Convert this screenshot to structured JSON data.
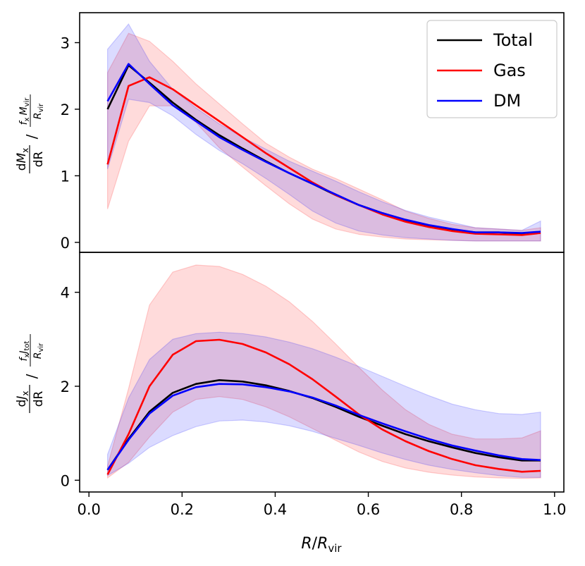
{
  "chart_data": [
    {
      "type": "line",
      "panel": "top",
      "title": "",
      "ylabel": {
        "num_d": "d",
        "num_sym": "M",
        "num_sub": "x",
        "den": "dR",
        "slash": "/",
        "f_num": "f",
        "f_sub": "x",
        "f_num2": "M",
        "f_num2_sub": "vir",
        "f_den": "R",
        "f_den_sub": "vir"
      },
      "xlim": [
        -0.02,
        1.02
      ],
      "ylim": [
        -0.15,
        3.45
      ],
      "yticks": [
        0,
        1,
        2,
        3
      ],
      "ytick_labels": [
        "0",
        "1",
        "2",
        "3"
      ],
      "x": [
        0.04,
        0.085,
        0.13,
        0.18,
        0.23,
        0.28,
        0.33,
        0.38,
        0.43,
        0.48,
        0.53,
        0.58,
        0.63,
        0.68,
        0.73,
        0.78,
        0.83,
        0.88,
        0.93,
        0.97
      ],
      "series": [
        {
          "name": "Total",
          "color": "#000000",
          "values": [
            2.0,
            2.66,
            2.4,
            2.1,
            1.84,
            1.61,
            1.41,
            1.22,
            1.04,
            0.88,
            0.71,
            0.56,
            0.44,
            0.33,
            0.25,
            0.19,
            0.15,
            0.15,
            0.13,
            0.15
          ]
        },
        {
          "name": "Gas",
          "color": "#ff0000",
          "values": [
            1.17,
            2.35,
            2.48,
            2.3,
            2.06,
            1.82,
            1.58,
            1.34,
            1.12,
            0.9,
            0.71,
            0.56,
            0.42,
            0.31,
            0.23,
            0.17,
            0.13,
            0.12,
            0.11,
            0.14
          ],
          "band_lower": [
            0.5,
            1.52,
            2.05,
            2.05,
            1.8,
            1.42,
            1.13,
            0.85,
            0.58,
            0.35,
            0.2,
            0.12,
            0.08,
            0.05,
            0.04,
            0.03,
            0.02,
            0.02,
            0.02,
            0.02
          ],
          "band_upper": [
            2.55,
            3.14,
            3.02,
            2.72,
            2.38,
            2.08,
            1.78,
            1.49,
            1.28,
            1.1,
            0.96,
            0.8,
            0.64,
            0.47,
            0.36,
            0.27,
            0.22,
            0.2,
            0.18,
            0.22
          ]
        },
        {
          "name": "DM",
          "color": "#0000ff",
          "values": [
            2.12,
            2.68,
            2.38,
            2.06,
            1.82,
            1.58,
            1.39,
            1.21,
            1.04,
            0.88,
            0.72,
            0.56,
            0.44,
            0.34,
            0.26,
            0.2,
            0.15,
            0.15,
            0.14,
            0.16
          ],
          "band_lower": [
            1.1,
            2.15,
            2.1,
            1.9,
            1.62,
            1.38,
            1.18,
            0.96,
            0.72,
            0.47,
            0.29,
            0.17,
            0.11,
            0.07,
            0.05,
            0.03,
            0.02,
            0.02,
            0.02,
            0.02
          ],
          "band_upper": [
            2.9,
            3.28,
            2.72,
            2.3,
            2.02,
            1.78,
            1.58,
            1.4,
            1.22,
            1.07,
            0.92,
            0.76,
            0.61,
            0.48,
            0.38,
            0.3,
            0.22,
            0.2,
            0.18,
            0.32
          ]
        }
      ],
      "legend": {
        "position": "top-right",
        "entries": [
          "Total",
          "Gas",
          "DM"
        ]
      }
    },
    {
      "type": "line",
      "panel": "bottom",
      "ylabel": {
        "num_d": "d",
        "num_sym": "J",
        "num_sub": "x",
        "den": "dR",
        "slash": "/",
        "f_num": "f",
        "f_sub": "x",
        "f_num2": "J",
        "f_num2_sub": "tot",
        "f_den": "R",
        "f_den_sub": "vir"
      },
      "xlabel": {
        "sym": "R",
        "slash": "/",
        "sym2": "R",
        "sub": "vir"
      },
      "xlim": [
        -0.02,
        1.02
      ],
      "ylim": [
        -0.25,
        4.85
      ],
      "yticks": [
        0,
        2,
        4
      ],
      "ytick_labels": [
        "0",
        "2",
        "4"
      ],
      "xticks": [
        0.0,
        0.2,
        0.4,
        0.6,
        0.8,
        1.0
      ],
      "xtick_labels": [
        "0.0",
        "0.2",
        "0.4",
        "0.6",
        "0.8",
        "1.0"
      ],
      "x": [
        0.04,
        0.085,
        0.13,
        0.18,
        0.23,
        0.28,
        0.33,
        0.38,
        0.43,
        0.48,
        0.53,
        0.58,
        0.63,
        0.68,
        0.73,
        0.78,
        0.83,
        0.88,
        0.93,
        0.97
      ],
      "series": [
        {
          "name": "Total",
          "color": "#000000",
          "values": [
            0.22,
            0.88,
            1.46,
            1.86,
            2.05,
            2.13,
            2.1,
            2.02,
            1.9,
            1.75,
            1.56,
            1.35,
            1.16,
            0.98,
            0.83,
            0.7,
            0.58,
            0.49,
            0.42,
            0.42
          ]
        },
        {
          "name": "Gas",
          "color": "#ff0000",
          "values": [
            0.12,
            0.98,
            2.0,
            2.67,
            2.96,
            2.99,
            2.9,
            2.72,
            2.47,
            2.15,
            1.78,
            1.4,
            1.08,
            0.83,
            0.62,
            0.45,
            0.32,
            0.24,
            0.18,
            0.2
          ],
          "band_lower": [
            0.05,
            0.38,
            0.92,
            1.45,
            1.72,
            1.78,
            1.72,
            1.56,
            1.35,
            1.1,
            0.85,
            0.6,
            0.4,
            0.26,
            0.17,
            0.11,
            0.07,
            0.05,
            0.04,
            0.05
          ],
          "band_upper": [
            0.3,
            1.95,
            3.73,
            4.43,
            4.58,
            4.55,
            4.38,
            4.13,
            3.8,
            3.38,
            2.9,
            2.4,
            1.92,
            1.5,
            1.19,
            0.98,
            0.88,
            0.88,
            0.9,
            1.05
          ]
        },
        {
          "name": "DM",
          "color": "#0000ff",
          "values": [
            0.22,
            0.86,
            1.42,
            1.8,
            1.98,
            2.05,
            2.04,
            1.98,
            1.89,
            1.76,
            1.59,
            1.39,
            1.21,
            1.04,
            0.88,
            0.74,
            0.63,
            0.53,
            0.45,
            0.43
          ],
          "band_lower": [
            0.1,
            0.36,
            0.7,
            0.95,
            1.14,
            1.26,
            1.28,
            1.24,
            1.16,
            1.04,
            0.89,
            0.74,
            0.58,
            0.44,
            0.32,
            0.23,
            0.16,
            0.1,
            0.06,
            0.06
          ],
          "band_upper": [
            0.55,
            1.75,
            2.57,
            3.0,
            3.12,
            3.15,
            3.12,
            3.05,
            2.94,
            2.8,
            2.62,
            2.42,
            2.21,
            2.0,
            1.8,
            1.62,
            1.5,
            1.42,
            1.4,
            1.45
          ]
        }
      ]
    }
  ]
}
